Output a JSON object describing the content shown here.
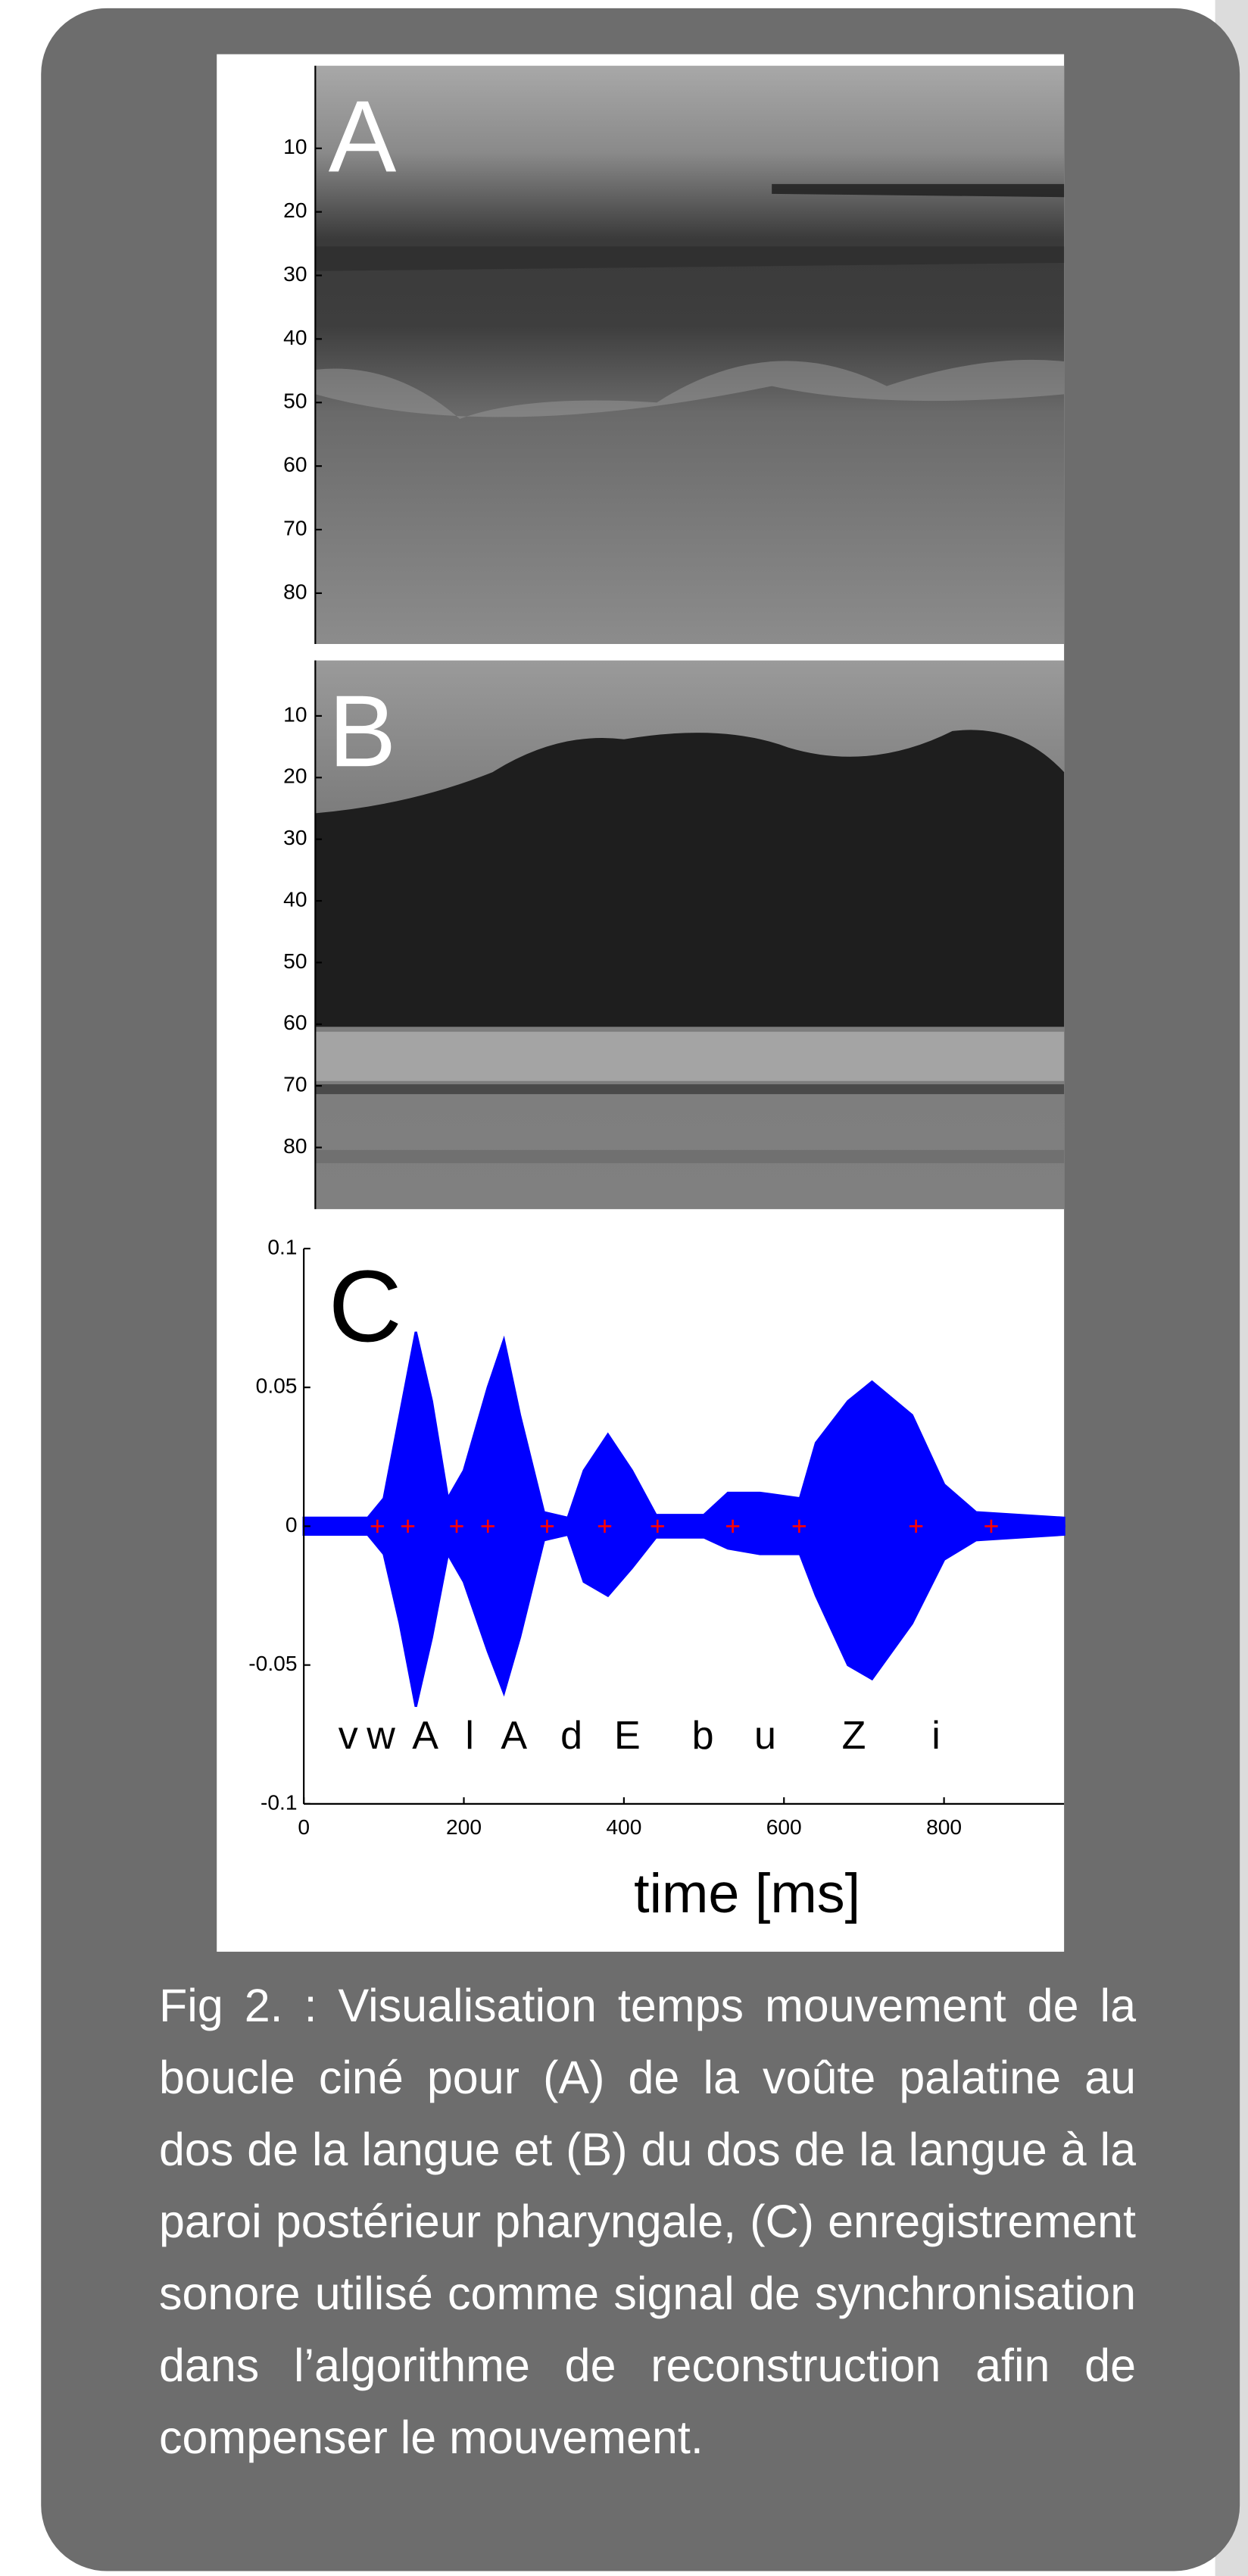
{
  "panels": [
    {
      "label": "A",
      "ylim": [
        -3,
        88
      ],
      "yticks": [
        10,
        20,
        30,
        40,
        50,
        60,
        70,
        80
      ]
    },
    {
      "label": "B",
      "ylim": [
        1,
        90
      ],
      "yticks": [
        10,
        20,
        30,
        40,
        50,
        60,
        70,
        80
      ]
    }
  ],
  "chart_data": {
    "type": "area",
    "label": "C",
    "xlabel": "time [ms]",
    "xlim": [
      0,
      950
    ],
    "ylim": [
      -0.1,
      0.1
    ],
    "xticks": [
      0,
      200,
      400,
      600,
      800
    ],
    "yticks": [
      -0.1,
      -0.05,
      0,
      0.05,
      0.1
    ],
    "color": "#0000ff",
    "x": [
      0,
      80,
      100,
      120,
      140,
      160,
      180,
      200,
      230,
      250,
      270,
      300,
      330,
      350,
      380,
      410,
      440,
      500,
      530,
      570,
      620,
      640,
      680,
      710,
      760,
      800,
      840,
      950
    ],
    "upper": [
      0.003,
      0.003,
      0.01,
      0.04,
      0.07,
      0.045,
      0.01,
      0.02,
      0.05,
      0.067,
      0.04,
      0.005,
      0.003,
      0.02,
      0.033,
      0.02,
      0.004,
      0.004,
      0.012,
      0.012,
      0.01,
      0.03,
      0.045,
      0.052,
      0.04,
      0.015,
      0.005,
      0.003
    ],
    "lower": [
      -0.003,
      -0.003,
      -0.01,
      -0.035,
      -0.065,
      -0.04,
      -0.01,
      -0.02,
      -0.045,
      -0.06,
      -0.04,
      -0.005,
      -0.003,
      -0.02,
      -0.025,
      -0.015,
      -0.004,
      -0.004,
      -0.008,
      -0.01,
      -0.01,
      -0.025,
      -0.05,
      -0.055,
      -0.035,
      -0.012,
      -0.005,
      -0.003
    ],
    "markers": {
      "color": "#ff0000",
      "x": [
        92,
        130,
        191,
        230,
        304,
        376,
        442,
        536,
        619,
        765,
        859
      ],
      "y": [
        0,
        0,
        0,
        0,
        0,
        0,
        0,
        0,
        0,
        0,
        0
      ]
    },
    "phonemes": [
      "v",
      "w",
      "A",
      "l",
      "A",
      "d",
      "E",
      "b",
      "u",
      "Z",
      "i"
    ]
  },
  "caption": "Fig 2. : Visualisation temps mouvement de la boucle ciné pour (A) de la voûte palatine au dos de la langue et (B) du dos de la langue à la paroi postérieur pharyngale, (C) enregistrement sonore utilisé comme signal de synchronisation dans l’algorithme de reconstruction afin de compenser le mouvement."
}
